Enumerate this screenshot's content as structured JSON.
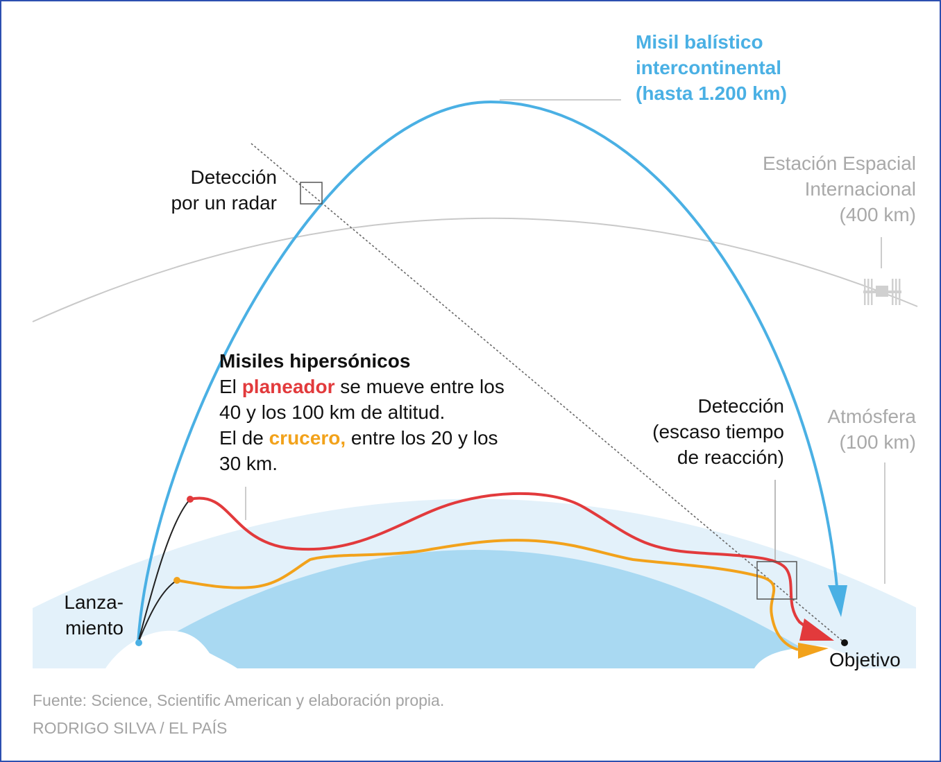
{
  "icbm": {
    "line1": "Misil balístico",
    "line2": "intercontinental",
    "line3": "(hasta 1.200 km)"
  },
  "iss": {
    "line1": "Estación Espacial",
    "line2": "Internacional",
    "line3": "(400 km)"
  },
  "radar": {
    "line1": "Detección",
    "line2": "por un radar"
  },
  "hypersonic": {
    "title": "Misiles hipersónicos",
    "l1_pre": "El ",
    "l1_glider": "planeador",
    "l1_post": " se mueve entre los",
    "l2": "40 y los 100 km de altitud.",
    "l3_pre": "El de ",
    "l3_cruise": "crucero,",
    "l3_post": " entre los 20 y los",
    "l4": "30 km."
  },
  "late_detection": {
    "line1": "Detección",
    "line2": "(escaso tiempo",
    "line3": "de reacción)"
  },
  "atmosphere": {
    "line1": "Atmósfera",
    "line2": "(100 km)"
  },
  "launch": {
    "line1": "Lanza-",
    "line2": "miento"
  },
  "target": "Objetivo",
  "footer": {
    "source": "Fuente: Science, Scientific American y elaboración propia.",
    "credit": "RODRIGO SILVA / EL PAÍS"
  },
  "colors": {
    "icbm": "#4ab0e4",
    "glider": "#e23a3c",
    "cruise": "#f2a21b",
    "atmosphere": "#e3f1fa",
    "earth": "#a9d9f2",
    "frame": "#2c4fb0"
  },
  "icons": {
    "space_station": "space-station-icon"
  }
}
